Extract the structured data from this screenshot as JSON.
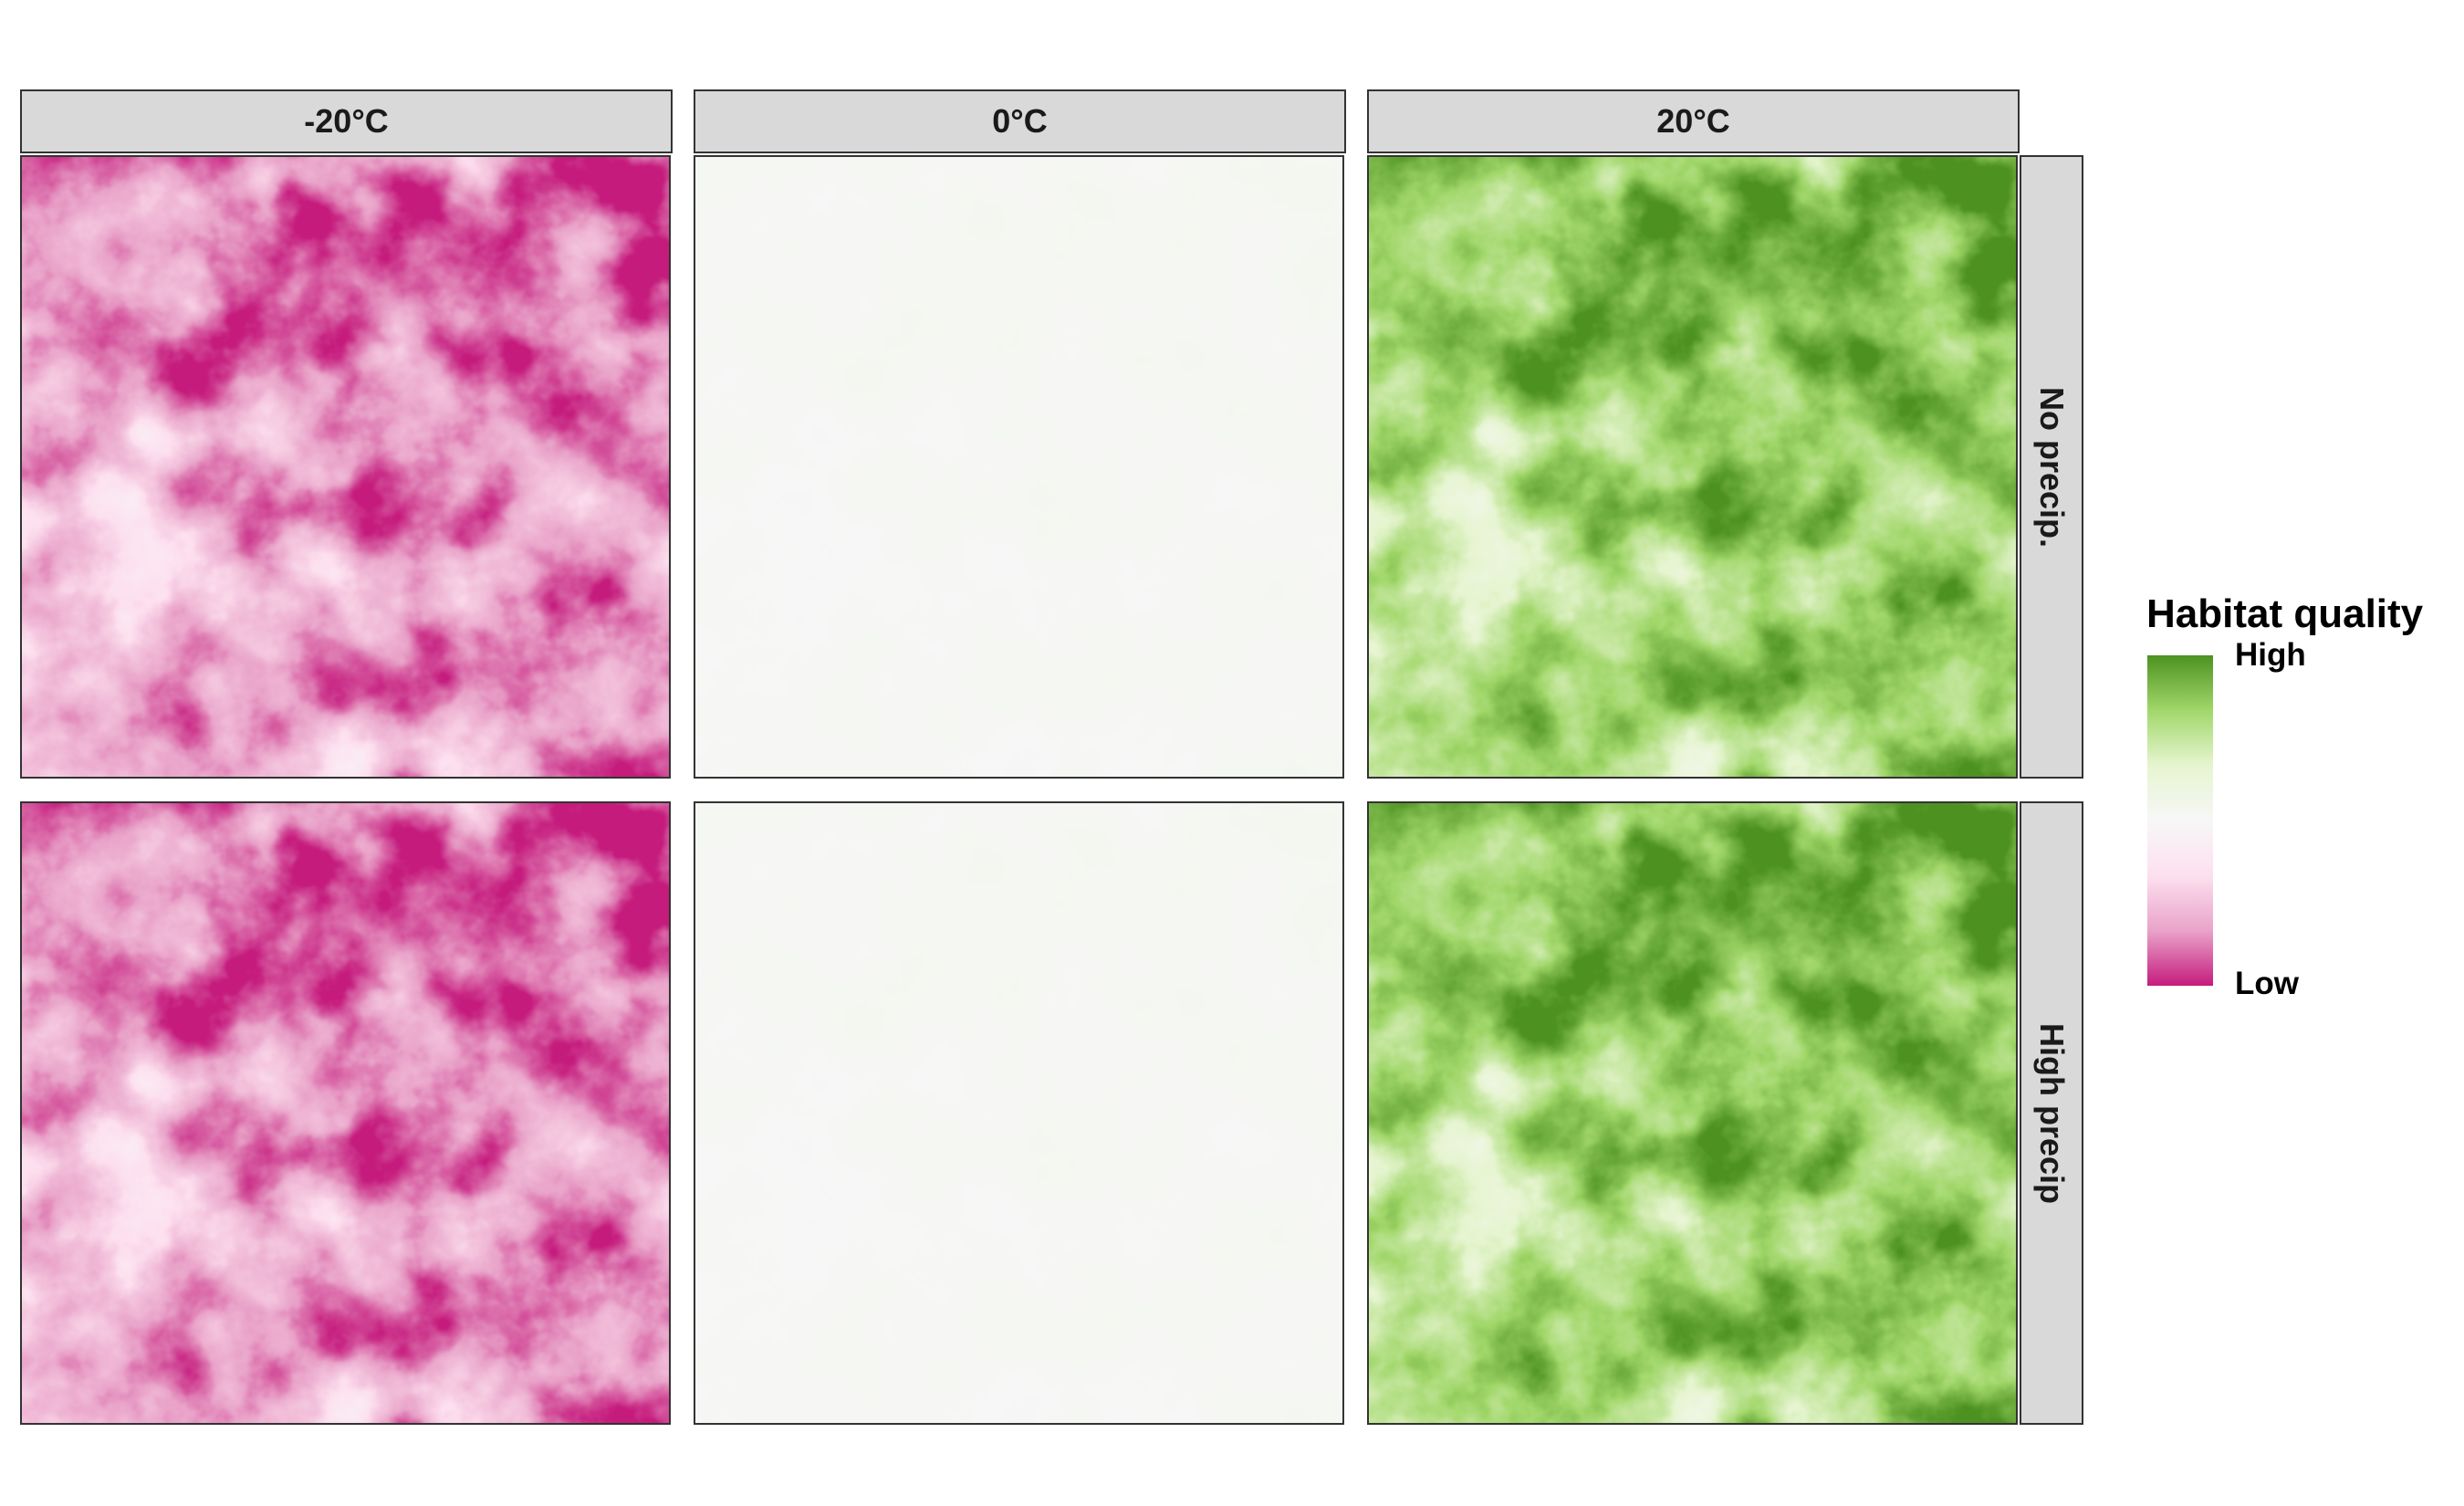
{
  "chart_data": {
    "type": "heatmap",
    "facet_columns": [
      "-20°C",
      "0°C",
      "20°C"
    ],
    "facet_rows": [
      "No precip.",
      "High precip"
    ],
    "panels": [
      {
        "column": "-20°C",
        "row": "No precip.",
        "mean_value": -0.6,
        "spread": 0.55
      },
      {
        "column": "0°C",
        "row": "No precip.",
        "mean_value": 0.02,
        "spread": 0.04
      },
      {
        "column": "20°C",
        "row": "No precip.",
        "mean_value": 0.6,
        "spread": 0.55
      },
      {
        "column": "-20°C",
        "row": "High precip",
        "mean_value": -0.62,
        "spread": 0.55
      },
      {
        "column": "0°C",
        "row": "High precip",
        "mean_value": 0.02,
        "spread": 0.04
      },
      {
        "column": "20°C",
        "row": "High precip",
        "mean_value": 0.62,
        "spread": 0.55
      }
    ],
    "legend": {
      "title": "Habitat quality",
      "high_label": "High",
      "low_label": "Low",
      "colors": [
        "#c51b7d",
        "#e9a3c9",
        "#fde0ef",
        "#f7f7f7",
        "#e6f5d0",
        "#a1d76a",
        "#4d9221"
      ],
      "placement": "right"
    }
  }
}
